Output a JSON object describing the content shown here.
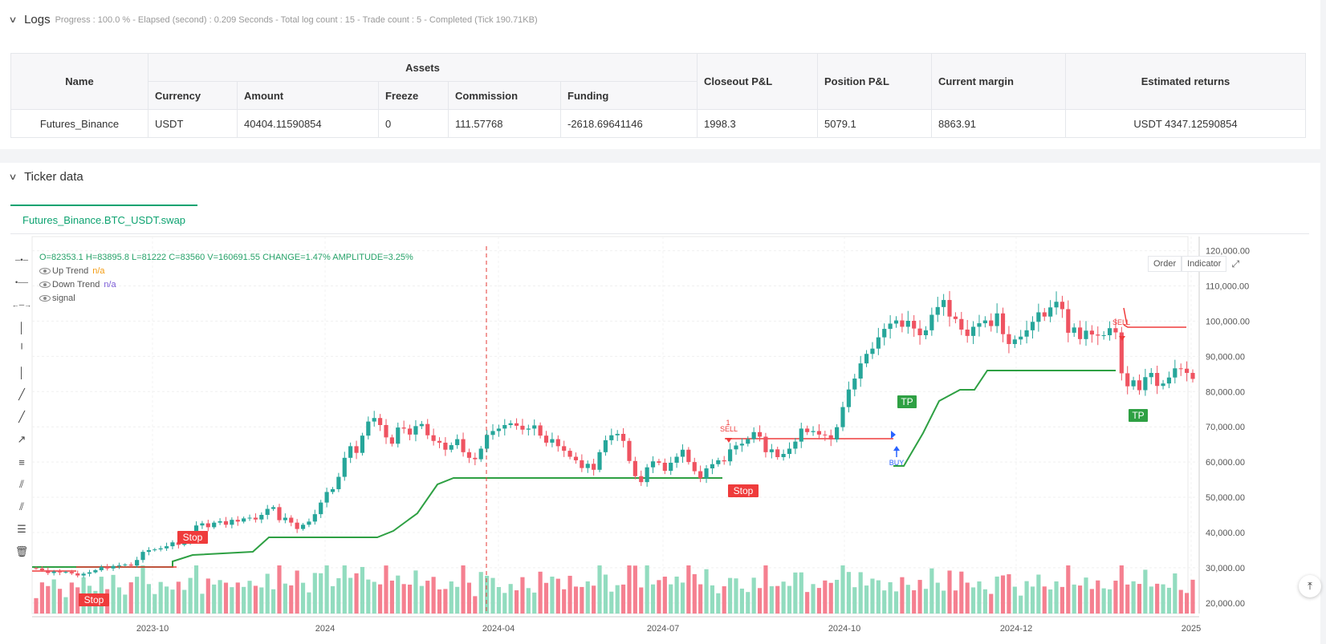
{
  "logs": {
    "title": "Logs",
    "status": "Progress : 100.0 % - Elapsed (second) : 0.209  Seconds - Total log count : 15 - Trade count : 5 - Completed (Tick 190.71KB)",
    "table": {
      "assets_header": "Assets",
      "columns": [
        "Name",
        "Currency",
        "Amount",
        "Freeze",
        "Commission",
        "Funding",
        "Closeout P&L",
        "Position P&L",
        "Current margin",
        "Estimated returns"
      ],
      "row": [
        "Futures_Binance",
        "USDT",
        "40404.11590854",
        "0",
        "111.57768",
        "-2618.69641146",
        "1998.3",
        "5079.1",
        "8863.91",
        "USDT 4347.12590854"
      ]
    }
  },
  "ticker": {
    "title": "Ticker data",
    "tab": "Futures_Binance.BTC_USDT.swap",
    "ohlc": {
      "o_label": "O=",
      "o": "82353.1",
      "h_label": "H=",
      "h": "83895.8",
      "l_label": "L=",
      "l": "81222",
      "c_label": "C=",
      "c": "83560",
      "v_label": "V=",
      "v": "160691.55",
      "change_label": "CHANGE=",
      "change": "1.47%",
      "amp_label": "AMPLITUDE=",
      "amp": "3.25%"
    },
    "legend": [
      {
        "name": "Up Trend",
        "value": "n/a",
        "color": "#f39c12"
      },
      {
        "name": "Down Trend",
        "value": "n/a",
        "color": "#7b5cd6"
      },
      {
        "name": "signal",
        "value": ""
      }
    ],
    "buttons": {
      "order": "Order",
      "indicator": "Indicator"
    },
    "toolbar_icons": [
      "horizontal-line-icon",
      "horizontal-ray-icon",
      "extended-line-icon",
      "vertical-line-icon",
      "vertical-segment-icon",
      "vertical-ray-icon",
      "trend-line-icon",
      "trend-segment-icon",
      "arrow-line-icon",
      "price-label-icon",
      "parallel-channel-icon",
      "pitchfork-icon",
      "fibonacci-icon",
      "delete-icon"
    ]
  },
  "chart_data": {
    "type": "candlestick",
    "y_ticks": [
      "120,000.00",
      "110,000.00",
      "100,000.00",
      "90,000.00",
      "80,000.00",
      "70,000.00",
      "60,000.00",
      "50,000.00",
      "40,000.00",
      "30,000.00",
      "20,000.00"
    ],
    "x_ticks": [
      "2023-10",
      "2024",
      "2024-04",
      "2024-07",
      "2024-10",
      "2024-12",
      "2025"
    ],
    "ylim": [
      17000,
      124000
    ],
    "candle_colors": {
      "up": "#26a69a",
      "down": "#ef5361"
    },
    "close_series": [
      29800,
      29300,
      28500,
      28900,
      28700,
      28800,
      28400,
      27800,
      28300,
      28700,
      29300,
      30200,
      29800,
      30500,
      30700,
      30900,
      30600,
      32200,
      34500,
      35000,
      35200,
      35500,
      36100,
      37200,
      36500,
      37100,
      37800,
      42000,
      42600,
      41500,
      42800,
      43200,
      42200,
      43600,
      43100,
      44000,
      44200,
      43700,
      45000,
      46700,
      47200,
      43500,
      44200,
      42800,
      41000,
      42200,
      43100,
      45200,
      48500,
      51500,
      52300,
      55800,
      61200,
      64500,
      62600,
      67500,
      71500,
      72500,
      70500,
      67000,
      65200,
      69800,
      69500,
      67800,
      70200,
      70800,
      67600,
      66000,
      65500,
      63500,
      64800,
      66500,
      62800,
      61200,
      60800,
      63800,
      67700,
      68800,
      69500,
      70500,
      71000,
      70300,
      69200,
      69500,
      70400,
      67500,
      65500,
      66500,
      64500,
      63200,
      61500,
      60500,
      58300,
      59500,
      57800,
      62800,
      66200,
      67600,
      68000,
      66000,
      60300,
      56000,
      54300,
      58500,
      60200,
      59800,
      57500,
      59800,
      61500,
      63500,
      60000,
      57400,
      55400,
      58200,
      59400,
      60500,
      60200,
      63600,
      64700,
      65200,
      66500,
      68500,
      67200,
      62800,
      63600,
      61400,
      62300,
      63800,
      65800,
      69500,
      68500,
      68800,
      67800,
      67600,
      66400,
      69900,
      75600,
      80600,
      83700,
      88000,
      90700,
      92200,
      95400,
      97800,
      99300,
      100200,
      98400,
      100100,
      97900,
      96000,
      97400,
      101800,
      104000,
      106000,
      101300,
      100600,
      97600,
      95800,
      98400,
      99400,
      100200,
      98600,
      102200,
      96300,
      93500,
      94800,
      95600,
      97400,
      99800,
      102500,
      101300,
      103900,
      105500,
      103400,
      96700,
      98200,
      94900,
      97300,
      96200,
      95900,
      96000,
      98000,
      96800,
      85200,
      81500,
      83200,
      80400,
      84100,
      85300,
      81600,
      82300,
      84000,
      86600,
      86500,
      85300,
      83600
    ]
  }
}
